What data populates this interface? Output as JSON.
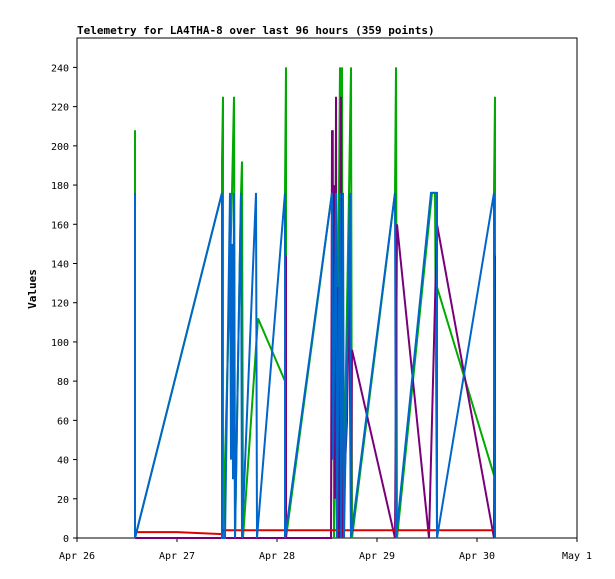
{
  "chart_data": {
    "type": "line",
    "title": "Telemetry for LA4THA-8 over last 96 hours (359 points)",
    "ylabel": "Values",
    "xlabel": "",
    "ylim": [
      0,
      255
    ],
    "xlim": [
      0,
      5
    ],
    "xticks": [
      {
        "value": 0,
        "label": "Apr 26"
      },
      {
        "value": 1,
        "label": "Apr 27"
      },
      {
        "value": 2,
        "label": "Apr 28"
      },
      {
        "value": 3,
        "label": "Apr 29"
      },
      {
        "value": 4,
        "label": "Apr 30"
      },
      {
        "value": 5,
        "label": "May 1"
      }
    ],
    "yticks": [
      0,
      20,
      40,
      60,
      80,
      100,
      120,
      140,
      160,
      180,
      200,
      220,
      240
    ],
    "grid": false,
    "series": [
      {
        "color": "#00aa00",
        "points": [
          [
            0.58,
            208
          ],
          [
            0.58,
            176
          ],
          [
            0.58,
            0
          ],
          [
            1.45,
            176
          ],
          [
            1.45,
            192
          ],
          [
            1.46,
            225
          ],
          [
            1.46,
            0
          ],
          [
            1.55,
            176
          ],
          [
            1.57,
            225
          ],
          [
            1.58,
            0
          ],
          [
            1.64,
            176
          ],
          [
            1.65,
            192
          ],
          [
            1.66,
            0
          ],
          [
            1.81,
            112
          ],
          [
            2.08,
            80
          ],
          [
            2.08,
            176
          ],
          [
            2.09,
            240
          ],
          [
            2.09,
            0
          ],
          [
            2.55,
            176
          ],
          [
            2.56,
            208
          ],
          [
            2.57,
            0
          ],
          [
            2.62,
            176
          ],
          [
            2.63,
            240
          ],
          [
            2.64,
            0
          ],
          [
            2.65,
            240
          ],
          [
            2.66,
            0
          ],
          [
            2.72,
            176
          ],
          [
            2.73,
            208
          ],
          [
            2.74,
            240
          ],
          [
            2.75,
            0
          ],
          [
            3.18,
            176
          ],
          [
            3.19,
            240
          ],
          [
            3.2,
            0
          ],
          [
            3.55,
            176
          ],
          [
            3.58,
            176
          ],
          [
            3.6,
            0
          ],
          [
            3.6,
            128
          ],
          [
            4.17,
            32
          ],
          [
            4.17,
            176
          ],
          [
            4.18,
            225
          ],
          [
            4.18,
            0
          ]
        ]
      },
      {
        "color": "#7a007a",
        "points": [
          [
            0.58,
            0
          ],
          [
            1.45,
            0
          ],
          [
            1.66,
            0
          ],
          [
            2.08,
            0
          ],
          [
            2.09,
            144
          ],
          [
            2.09,
            0
          ],
          [
            2.54,
            0
          ],
          [
            2.55,
            208
          ],
          [
            2.56,
            100
          ],
          [
            2.57,
            180
          ],
          [
            2.58,
            20
          ],
          [
            2.59,
            225
          ],
          [
            2.6,
            0
          ],
          [
            2.61,
            128
          ],
          [
            2.62,
            0
          ],
          [
            2.64,
            225
          ],
          [
            2.65,
            0
          ],
          [
            2.7,
            60
          ],
          [
            2.72,
            144
          ],
          [
            2.74,
            0
          ],
          [
            2.75,
            96
          ],
          [
            3.18,
            0
          ],
          [
            3.2,
            160
          ],
          [
            3.52,
            0
          ],
          [
            3.6,
            160
          ],
          [
            4.17,
            0
          ],
          [
            4.18,
            144
          ],
          [
            4.18,
            0
          ]
        ]
      },
      {
        "color": "#dd0000",
        "points": [
          [
            0.58,
            3
          ],
          [
            1.0,
            3
          ],
          [
            1.45,
            2
          ],
          [
            1.46,
            4
          ],
          [
            1.9,
            4
          ],
          [
            2.5,
            4
          ],
          [
            3.0,
            4
          ],
          [
            3.6,
            4
          ],
          [
            4.18,
            4
          ]
        ]
      },
      {
        "color": "#0066cc",
        "points": [
          [
            0.58,
            176
          ],
          [
            0.58,
            0
          ],
          [
            1.45,
            176
          ],
          [
            1.45,
            0
          ],
          [
            1.48,
            0
          ],
          [
            1.53,
            176
          ],
          [
            1.54,
            40
          ],
          [
            1.55,
            150
          ],
          [
            1.56,
            30
          ],
          [
            1.57,
            176
          ],
          [
            1.58,
            0
          ],
          [
            1.64,
            176
          ],
          [
            1.65,
            0
          ],
          [
            1.79,
            176
          ],
          [
            1.8,
            0
          ],
          [
            2.08,
            176
          ],
          [
            2.08,
            0
          ],
          [
            2.55,
            176
          ],
          [
            2.56,
            40
          ],
          [
            2.59,
            176
          ],
          [
            2.6,
            0
          ],
          [
            2.63,
            176
          ],
          [
            2.64,
            0
          ],
          [
            2.66,
            176
          ],
          [
            2.67,
            0
          ],
          [
            2.73,
            176
          ],
          [
            2.74,
            0
          ],
          [
            3.18,
            176
          ],
          [
            3.19,
            0
          ],
          [
            3.54,
            176
          ],
          [
            3.6,
            176
          ],
          [
            3.6,
            0
          ],
          [
            4.17,
            176
          ],
          [
            4.18,
            0
          ]
        ]
      }
    ]
  }
}
